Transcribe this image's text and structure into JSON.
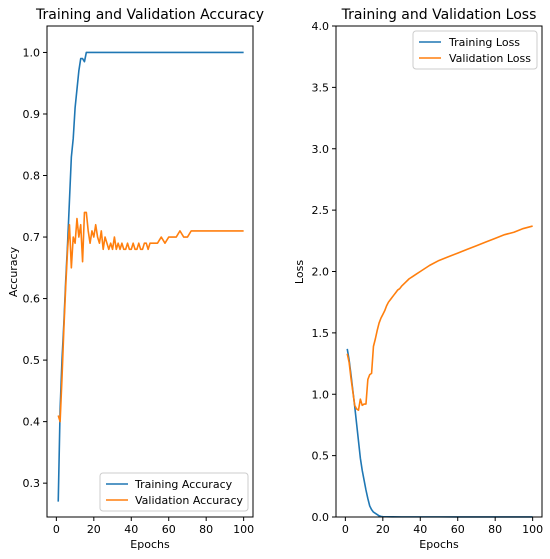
{
  "chart_data": [
    {
      "type": "line",
      "title": "Training and Validation Accuracy",
      "xlabel": "Epochs",
      "ylabel": "Accuracy",
      "xlim": [
        -5,
        105
      ],
      "ylim": [
        0.245,
        1.043
      ],
      "xticks": [
        0,
        20,
        40,
        60,
        80,
        100
      ],
      "yticks": [
        0.3,
        0.4,
        0.5,
        0.6,
        0.7,
        0.8,
        0.9,
        1.0
      ],
      "xtick_labels": [
        "0",
        "20",
        "40",
        "60",
        "80",
        "100"
      ],
      "ytick_labels": [
        "0.3",
        "0.4",
        "0.5",
        "0.6",
        "0.7",
        "0.8",
        "0.9",
        "1.0"
      ],
      "legend_position": "lower-right",
      "grid": false,
      "series": [
        {
          "name": "Training Accuracy",
          "color": "#1f77b4",
          "x": [
            1,
            2,
            3,
            4,
            5,
            6,
            7,
            8,
            9,
            10,
            11,
            12,
            13,
            14,
            15,
            16,
            17,
            18,
            19,
            20,
            25,
            30,
            40,
            50,
            60,
            70,
            80,
            90,
            100
          ],
          "y": [
            0.27,
            0.42,
            0.5,
            0.56,
            0.63,
            0.69,
            0.76,
            0.83,
            0.86,
            0.91,
            0.94,
            0.97,
            0.99,
            0.99,
            0.985,
            1.0,
            1.0,
            1.0,
            1.0,
            1.0,
            1.0,
            1.0,
            1.0,
            1.0,
            1.0,
            1.0,
            1.0,
            1.0,
            1.0
          ]
        },
        {
          "name": "Validation Accuracy",
          "color": "#ff7f0e",
          "x": [
            1,
            2,
            3,
            4,
            5,
            6,
            7,
            8,
            9,
            10,
            11,
            12,
            13,
            14,
            15,
            16,
            17,
            18,
            19,
            20,
            21,
            22,
            23,
            24,
            25,
            26,
            27,
            28,
            29,
            30,
            31,
            32,
            33,
            34,
            35,
            36,
            37,
            38,
            39,
            40,
            41,
            42,
            43,
            44,
            45,
            46,
            47,
            48,
            49,
            50,
            52,
            54,
            56,
            58,
            60,
            62,
            64,
            66,
            68,
            70,
            72,
            74,
            76,
            78,
            80,
            82,
            84,
            86,
            88,
            90,
            92,
            94,
            96,
            98,
            100
          ],
          "y": [
            0.41,
            0.4,
            0.47,
            0.55,
            0.62,
            0.68,
            0.72,
            0.65,
            0.7,
            0.69,
            0.73,
            0.7,
            0.72,
            0.66,
            0.74,
            0.74,
            0.71,
            0.69,
            0.71,
            0.7,
            0.72,
            0.7,
            0.69,
            0.71,
            0.68,
            0.7,
            0.69,
            0.68,
            0.69,
            0.68,
            0.7,
            0.68,
            0.69,
            0.68,
            0.69,
            0.68,
            0.68,
            0.69,
            0.68,
            0.68,
            0.69,
            0.68,
            0.68,
            0.69,
            0.68,
            0.68,
            0.69,
            0.69,
            0.68,
            0.69,
            0.69,
            0.69,
            0.7,
            0.69,
            0.7,
            0.7,
            0.7,
            0.71,
            0.7,
            0.7,
            0.71,
            0.71,
            0.71,
            0.71,
            0.71,
            0.71,
            0.71,
            0.71,
            0.71,
            0.71,
            0.71,
            0.71,
            0.71,
            0.71,
            0.71
          ]
        }
      ]
    },
    {
      "type": "line",
      "title": "Training and Validation Loss",
      "xlabel": "Epochs",
      "ylabel": "Loss",
      "xlim": [
        -5,
        105
      ],
      "ylim": [
        0,
        4
      ],
      "xticks": [
        0,
        20,
        40,
        60,
        80,
        100
      ],
      "yticks": [
        0,
        0.5,
        1.0,
        1.5,
        2.0,
        2.5,
        3.0,
        3.5,
        4.0
      ],
      "xtick_labels": [
        "0",
        "20",
        "40",
        "60",
        "80",
        "100"
      ],
      "ytick_labels": [
        "0.0",
        "0.5",
        "1.0",
        "1.5",
        "2.0",
        "2.5",
        "3.0",
        "3.5",
        "4.0"
      ],
      "legend_position": "top-right",
      "grid": false,
      "series": [
        {
          "name": "Training Loss",
          "color": "#1f77b4",
          "x": [
            1,
            2,
            3,
            4,
            5,
            6,
            7,
            8,
            9,
            10,
            11,
            12,
            13,
            14,
            15,
            16,
            17,
            18,
            19,
            20,
            22,
            25,
            30,
            40,
            50,
            60,
            70,
            80,
            90,
            100
          ],
          "y": [
            1.37,
            1.28,
            1.16,
            1.03,
            0.9,
            0.76,
            0.62,
            0.48,
            0.38,
            0.3,
            0.22,
            0.15,
            0.09,
            0.06,
            0.04,
            0.03,
            0.02,
            0.01,
            0.005,
            0.003,
            0.002,
            0.0015,
            0.001,
            0.001,
            0.001,
            0.0008,
            0.0006,
            0.0005,
            0.0004,
            0.0003
          ]
        },
        {
          "name": "Validation Loss",
          "color": "#ff7f0e",
          "x": [
            1,
            2,
            3,
            4,
            5,
            6,
            7,
            8,
            9,
            10,
            11,
            12,
            13,
            14,
            15,
            16,
            17,
            18,
            19,
            20,
            21,
            22,
            23,
            24,
            25,
            26,
            27,
            28,
            29,
            30,
            32,
            34,
            36,
            38,
            40,
            45,
            50,
            55,
            60,
            65,
            70,
            75,
            80,
            85,
            90,
            95,
            100
          ],
          "y": [
            1.33,
            1.26,
            1.13,
            1.02,
            0.91,
            0.88,
            0.87,
            0.96,
            0.91,
            0.92,
            0.92,
            1.12,
            1.16,
            1.17,
            1.39,
            1.45,
            1.52,
            1.58,
            1.62,
            1.65,
            1.68,
            1.72,
            1.75,
            1.77,
            1.79,
            1.81,
            1.83,
            1.85,
            1.86,
            1.88,
            1.91,
            1.94,
            1.96,
            1.98,
            2.0,
            2.05,
            2.09,
            2.12,
            2.15,
            2.18,
            2.21,
            2.24,
            2.27,
            2.3,
            2.32,
            2.35,
            2.37
          ]
        }
      ]
    }
  ]
}
